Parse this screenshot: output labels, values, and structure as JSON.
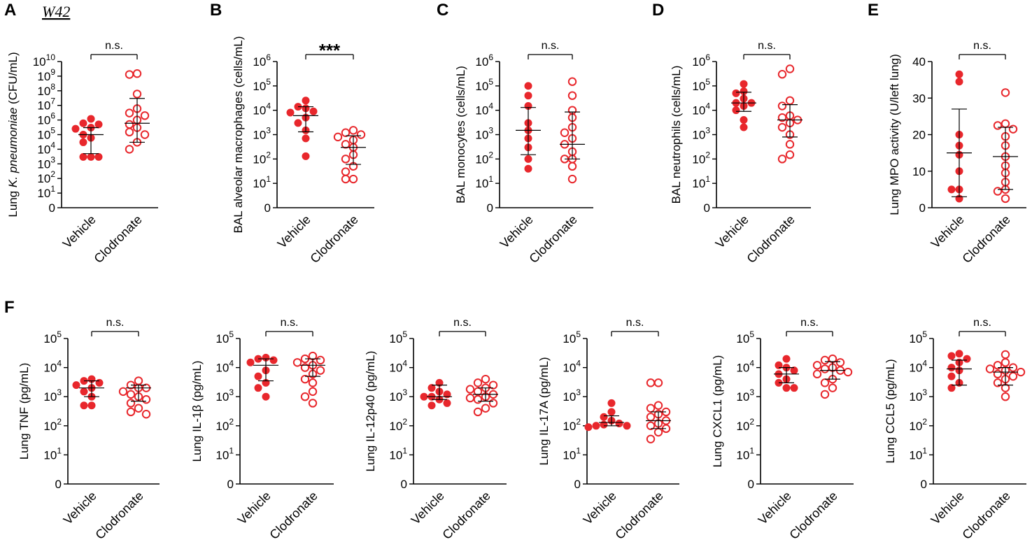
{
  "figure_label": "W42",
  "colors": {
    "vehicle": "#e8272c",
    "clodronate": "#e8272c",
    "axis": "#000000",
    "error_bar": "#000000"
  },
  "chart_data": [
    {
      "panel": "A",
      "type": "scatter",
      "scale": "log",
      "ylabel_parts": [
        "Lung ",
        "K. pneumoniae",
        " (CFU/mL)"
      ],
      "ylabel_italic_index": 1,
      "yticks": [
        0,
        1,
        2,
        3,
        4,
        5,
        6,
        7,
        8,
        9,
        10
      ],
      "categories": [
        "Vehicle",
        "Clodronate"
      ],
      "significance": "n.s.",
      "groups": [
        {
          "name": "Vehicle",
          "filled": true,
          "center": 100000,
          "upper": 300000,
          "lower": 5000,
          "values": [
            1200000,
            600000,
            500000,
            300000,
            250000,
            100000,
            60000,
            30000,
            3000,
            3000,
            3000
          ]
        },
        {
          "name": "Clodronate",
          "filled": false,
          "center": 600000,
          "upper": 30000000,
          "lower": 30000,
          "values": [
            1500000000,
            1300000000,
            60000000,
            6000000,
            3000000,
            2000000,
            1000000,
            500000,
            300000,
            150000,
            100000,
            30000,
            10000
          ]
        }
      ]
    },
    {
      "panel": "B",
      "type": "scatter",
      "scale": "log",
      "ylabel": "BAL alveolar macrophages (cells/mL)",
      "yticks": [
        0,
        1,
        2,
        3,
        4,
        5,
        6
      ],
      "categories": [
        "Vehicle",
        "Clodronate"
      ],
      "significance": "***",
      "groups": [
        {
          "name": "Vehicle",
          "filled": true,
          "center": 6000,
          "upper": 14000,
          "lower": 1300,
          "values": [
            25000,
            14000,
            12000,
            9000,
            8000,
            5000,
            3000,
            1500,
            700,
            130
          ]
        },
        {
          "name": "Clodronate",
          "filled": false,
          "center": 300,
          "upper": 900,
          "lower": 60,
          "values": [
            1500,
            1200,
            1000,
            800,
            600,
            400,
            300,
            150,
            100,
            50,
            30,
            15,
            15
          ]
        }
      ]
    },
    {
      "panel": "C",
      "type": "scatter",
      "scale": "log",
      "ylabel": "BAL monocytes (cells/mL)",
      "yticks": [
        0,
        1,
        2,
        3,
        4,
        5,
        6
      ],
      "categories": [
        "Vehicle",
        "Clodronate"
      ],
      "significance": "n.s.",
      "groups": [
        {
          "name": "Vehicle",
          "filled": true,
          "center": 1500,
          "upper": 13000,
          "lower": 150,
          "values": [
            100000,
            40000,
            15000,
            3000,
            1500,
            700,
            300,
            100,
            40
          ]
        },
        {
          "name": "Clodronate",
          "filled": false,
          "center": 400,
          "upper": 8500,
          "lower": 100,
          "values": [
            150000,
            40000,
            10000,
            5000,
            2000,
            1200,
            700,
            400,
            200,
            100,
            100,
            50,
            15
          ]
        }
      ]
    },
    {
      "panel": "D",
      "type": "scatter",
      "scale": "log",
      "ylabel": "BAL neutrophils (cells/mL)",
      "yticks": [
        0,
        1,
        2,
        3,
        4,
        5,
        6
      ],
      "categories": [
        "Vehicle",
        "Clodronate"
      ],
      "significance": "n.s.",
      "groups": [
        {
          "name": "Vehicle",
          "filled": true,
          "center": 20000,
          "upper": 55000,
          "lower": 9000,
          "values": [
            120000,
            60000,
            50000,
            30000,
            20000,
            20000,
            15000,
            10000,
            4000,
            2000
          ]
        },
        {
          "name": "Clodronate",
          "filled": false,
          "center": 4000,
          "upper": 17000,
          "lower": 800,
          "values": [
            500000,
            300000,
            25000,
            15000,
            6000,
            5000,
            4000,
            3000,
            2000,
            1000,
            400,
            150,
            100
          ]
        }
      ]
    },
    {
      "panel": "E",
      "type": "scatter",
      "scale": "linear",
      "ylabel": "Lung MPO activity (U/left lung)",
      "yticks": [
        0,
        10,
        20,
        30,
        40
      ],
      "categories": [
        "Vehicle",
        "Clodronate"
      ],
      "significance": "n.s.",
      "groups": [
        {
          "name": "Vehicle",
          "filled": true,
          "center": 15,
          "upper": 27,
          "lower": 3,
          "values": [
            36.5,
            34.5,
            20,
            17,
            14.5,
            10,
            5,
            5,
            2.5
          ]
        },
        {
          "name": "Clodronate",
          "filled": false,
          "center": 14,
          "upper": 22,
          "lower": 5,
          "values": [
            31.5,
            23,
            22.5,
            21.5,
            19.5,
            17,
            14,
            11.5,
            9.5,
            7,
            5,
            4.5,
            2.5
          ]
        }
      ]
    },
    {
      "panel": "F",
      "type": "scatter",
      "scale": "log",
      "ylabel": "Lung TNF (pg/mL)",
      "yticks": [
        0,
        1,
        2,
        3,
        4,
        5
      ],
      "categories": [
        "Vehicle",
        "Clodronate"
      ],
      "significance": "n.s.",
      "groups": [
        {
          "name": "Vehicle",
          "filled": true,
          "center": 2000,
          "upper": 3500,
          "lower": 1000,
          "values": [
            4000,
            3500,
            3000,
            2500,
            2000,
            1500,
            1000,
            500,
            500
          ]
        },
        {
          "name": "Clodronate",
          "filled": false,
          "center": 2000,
          "upper": 2500,
          "lower": 700,
          "values": [
            3500,
            2500,
            2000,
            2000,
            1500,
            1200,
            1000,
            800,
            600,
            400,
            300,
            250
          ]
        }
      ]
    },
    {
      "panel": "",
      "type": "scatter",
      "scale": "log",
      "ylabel_parts": [
        "Lung IL-1",
        "β",
        " (pg/mL)"
      ],
      "ylabel_italic_index": -1,
      "yticks": [
        0,
        1,
        2,
        3,
        4,
        5
      ],
      "categories": [
        "Vehicle",
        "Clodronate"
      ],
      "significance": "n.s.",
      "groups": [
        {
          "name": "Vehicle",
          "filled": true,
          "center": 12000,
          "upper": 20000,
          "lower": 3500,
          "values": [
            22000,
            20000,
            18000,
            15000,
            8000,
            5000,
            3000,
            2000,
            1000
          ]
        },
        {
          "name": "Clodronate",
          "filled": false,
          "center": 12000,
          "upper": 20000,
          "lower": 5000,
          "values": [
            25000,
            20000,
            18000,
            15000,
            12000,
            10000,
            8000,
            6000,
            4000,
            3000,
            1500,
            1000,
            600
          ]
        }
      ]
    },
    {
      "panel": "",
      "type": "scatter",
      "scale": "log",
      "ylabel": "Lung IL-12p40 (pg/mL)",
      "yticks": [
        0,
        1,
        2,
        3,
        4,
        5
      ],
      "categories": [
        "Vehicle",
        "Clodronate"
      ],
      "significance": "n.s.",
      "groups": [
        {
          "name": "Vehicle",
          "filled": true,
          "center": 1000,
          "upper": 2500,
          "lower": 800,
          "values": [
            3000,
            2000,
            1500,
            1200,
            1000,
            1000,
            800,
            600,
            500
          ]
        },
        {
          "name": "Clodronate",
          "filled": false,
          "center": 1200,
          "upper": 2000,
          "lower": 700,
          "values": [
            4000,
            3000,
            2500,
            2000,
            1800,
            1500,
            1200,
            1000,
            900,
            800,
            600,
            400,
            300
          ]
        }
      ]
    },
    {
      "panel": "",
      "type": "scatter",
      "scale": "log",
      "ylabel": "Lung IL-17A (pg/mL)",
      "yticks": [
        0,
        1,
        2,
        3,
        4,
        5
      ],
      "categories": [
        "Vehicle",
        "Clodronate"
      ],
      "significance": "n.s.",
      "groups": [
        {
          "name": "Vehicle",
          "filled": true,
          "center": 130,
          "upper": 220,
          "lower": 100,
          "values": [
            600,
            300,
            200,
            150,
            120,
            110,
            100,
            100,
            90
          ]
        },
        {
          "name": "Clodronate",
          "filled": false,
          "center": 150,
          "upper": 300,
          "lower": 80,
          "values": [
            3000,
            3000,
            500,
            400,
            300,
            250,
            200,
            150,
            120,
            100,
            80,
            60,
            35
          ]
        }
      ]
    },
    {
      "panel": "",
      "type": "scatter",
      "scale": "log",
      "ylabel": "Lung CXCL1 (pg/mL)",
      "yticks": [
        0,
        1,
        2,
        3,
        4,
        5
      ],
      "categories": [
        "Vehicle",
        "Clodronate"
      ],
      "significance": "n.s.",
      "groups": [
        {
          "name": "Vehicle",
          "filled": true,
          "center": 6000,
          "upper": 10000,
          "lower": 3000,
          "values": [
            20000,
            12000,
            10000,
            8000,
            6000,
            4000,
            3000,
            2000,
            2000
          ]
        },
        {
          "name": "Clodronate",
          "filled": false,
          "center": 8000,
          "upper": 16000,
          "lower": 4000,
          "values": [
            20000,
            18000,
            15000,
            12000,
            10000,
            9000,
            8000,
            7000,
            6000,
            4000,
            3000,
            2000,
            1200
          ]
        }
      ]
    },
    {
      "panel": "",
      "type": "scatter",
      "scale": "log",
      "ylabel": "Lung CCL5 (pg/mL)",
      "yticks": [
        0,
        1,
        2,
        3,
        4,
        5
      ],
      "categories": [
        "Vehicle",
        "Clodronate"
      ],
      "significance": "n.s.",
      "groups": [
        {
          "name": "Vehicle",
          "filled": true,
          "center": 9000,
          "upper": 18000,
          "lower": 2500,
          "values": [
            30000,
            25000,
            20000,
            15000,
            10000,
            8000,
            5000,
            3000,
            2000
          ]
        },
        {
          "name": "Clodronate",
          "filled": false,
          "center": 7000,
          "upper": 10000,
          "lower": 2500,
          "values": [
            28000,
            15000,
            12000,
            10000,
            9000,
            8000,
            7000,
            6000,
            5000,
            4000,
            3000,
            2000,
            1000
          ]
        }
      ]
    }
  ]
}
